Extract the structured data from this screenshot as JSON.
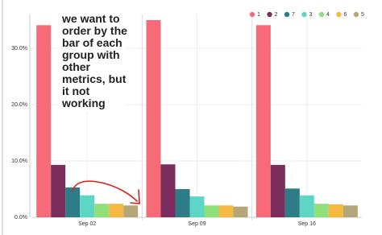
{
  "chart_data": {
    "type": "bar",
    "categories": [
      "Sep 02",
      "Sep 09",
      "Sep 16"
    ],
    "series": [
      {
        "name": "1",
        "color": "#f76b78",
        "values": [
          34.1,
          35,
          34.1
        ]
      },
      {
        "name": "2",
        "color": "#7b2d5e",
        "values": [
          9.3,
          9.4,
          9.3
        ]
      },
      {
        "name": "7",
        "color": "#2e7d86",
        "values": [
          5.3,
          5.0,
          5.1
        ]
      },
      {
        "name": "3",
        "color": "#5dd6c6",
        "values": [
          3.9,
          3.7,
          3.9
        ]
      },
      {
        "name": "4",
        "color": "#8fe07a",
        "values": [
          2.4,
          2.1,
          2.4
        ]
      },
      {
        "name": "6",
        "color": "#f5b942",
        "values": [
          2.4,
          2.1,
          2.3
        ]
      },
      {
        "name": "5",
        "color": "#b5a67a",
        "values": [
          2.1,
          1.9,
          2.1
        ]
      }
    ],
    "ylim": [
      0,
      36
    ],
    "yticks": [
      {
        "value": 0,
        "label": "0.0%"
      },
      {
        "value": 10,
        "label": "10.0%"
      },
      {
        "value": 20,
        "label": "20.0%"
      },
      {
        "value": 30,
        "label": "30.0%"
      }
    ],
    "grid": true,
    "legend": "top-right",
    "annotation": [
      "we want to",
      "order by the",
      "bar of each",
      "group with",
      "other",
      "metrics, but",
      "it not",
      "working"
    ]
  }
}
